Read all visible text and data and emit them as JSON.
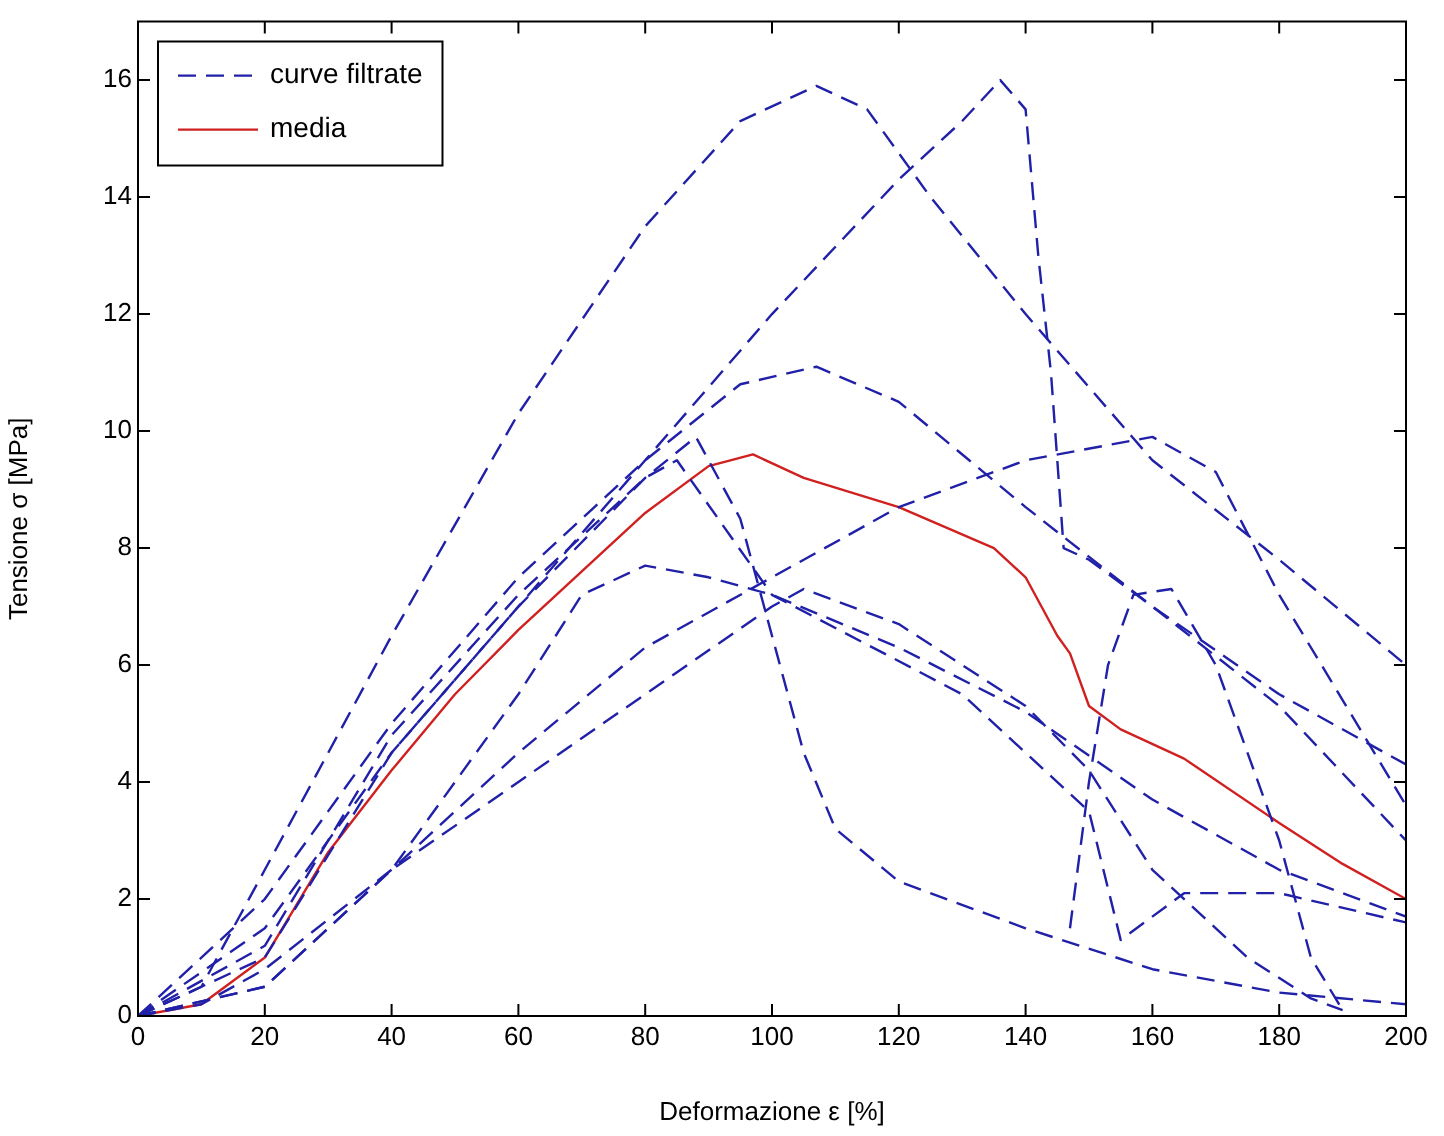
{
  "chart_data": {
    "type": "line",
    "xlabel": "Deformazione ε [%]",
    "ylabel": "Tensione σ [MPa]",
    "xlim": [
      0,
      200
    ],
    "xticks": [
      0,
      20,
      40,
      60,
      80,
      100,
      120,
      140,
      160,
      180,
      200
    ],
    "ylim": [
      0,
      17
    ],
    "yticks": [
      0,
      2,
      4,
      6,
      8,
      10,
      12,
      14,
      16
    ],
    "grid": false,
    "legend": "top left",
    "marker": "none",
    "series": [
      {
        "name": "curve filtrate",
        "color": "#2020a8",
        "line_style": "dashed",
        "x": [
          0,
          10,
          20,
          40,
          60,
          80,
          95,
          107,
          115,
          125,
          140,
          160,
          180,
          200
        ],
        "values": [
          0,
          0.5,
          2.5,
          6.5,
          10.3,
          13.5,
          15.3,
          15.9,
          15.5,
          14,
          12,
          9.5,
          7.8,
          6
        ]
      },
      {
        "color": "#2020a8",
        "line_style": "dashed",
        "x": [
          0,
          20,
          40,
          60,
          80,
          100,
          120,
          130,
          136,
          140,
          142,
          144,
          146,
          150,
          160,
          180,
          200
        ],
        "values": [
          0,
          1,
          4.5,
          7,
          9.5,
          12,
          14.3,
          15.3,
          16,
          15.5,
          13,
          11,
          8,
          7.8,
          7,
          5.5,
          4.3
        ]
      },
      {
        "color": "#2020a8",
        "line_style": "dashed",
        "x": [
          0,
          20,
          40,
          60,
          80,
          95,
          107,
          120,
          140,
          160,
          180,
          200
        ],
        "values": [
          0,
          2,
          5,
          7.5,
          9.5,
          10.8,
          11.1,
          10.5,
          8.7,
          7,
          5.3,
          3
        ]
      },
      {
        "color": "#2020a8",
        "line_style": "dashed",
        "x": [
          0,
          10,
          20,
          40,
          60,
          80,
          100,
          120,
          140,
          160,
          170,
          180,
          190,
          200
        ],
        "values": [
          0,
          0.2,
          0.8,
          2.5,
          4.5,
          6.3,
          7.5,
          8.7,
          9.5,
          9.9,
          9.3,
          7.2,
          5.4,
          3.6
        ]
      },
      {
        "color": "#2020a8",
        "line_style": "dashed",
        "x": [
          0,
          20,
          40,
          60,
          80,
          88,
          95,
          100,
          105,
          110,
          120,
          140,
          160,
          180,
          200
        ],
        "values": [
          0,
          1.5,
          4.5,
          7,
          9.2,
          9.9,
          8.5,
          6.5,
          4.5,
          3.2,
          2.3,
          1.5,
          0.8,
          0.4,
          0.2
        ]
      },
      {
        "color": "#2020a8",
        "line_style": "dashed",
        "x": [
          0,
          20,
          40,
          60,
          70,
          80,
          90,
          100,
          120,
          140,
          160,
          180,
          200
        ],
        "values": [
          0,
          0.5,
          2.5,
          5.5,
          7.2,
          7.7,
          7.5,
          7.2,
          6.3,
          5.2,
          3.7,
          2.5,
          1.7
        ]
      },
      {
        "color": "#2020a8",
        "line_style": "dashed",
        "x": [
          0,
          20,
          40,
          60,
          80,
          100,
          105,
          120,
          140,
          150,
          160,
          175,
          185,
          190
        ],
        "values": [
          0,
          0.5,
          2.5,
          4,
          5.5,
          7,
          7.3,
          6.7,
          5.3,
          4.2,
          2.5,
          1,
          0.3,
          0.1
        ]
      },
      {
        "color": "#2020a8",
        "line_style": "dashed",
        "x": [
          0,
          20,
          40,
          60,
          80,
          85,
          100,
          130,
          150,
          155,
          165,
          180,
          200
        ],
        "values": [
          0,
          1.2,
          4.8,
          7.2,
          9.2,
          9.5,
          7.2,
          5.5,
          3.5,
          1.3,
          2.1,
          2.1,
          1.6
        ]
      },
      {
        "color": "#2020a8",
        "line_style": "dashed",
        "x": [
          147,
          150,
          153,
          157,
          163,
          170,
          180,
          185,
          190
        ],
        "values": [
          1.5,
          4,
          6,
          7.2,
          7.3,
          6,
          3,
          1,
          0.1
        ]
      },
      {
        "name": "media",
        "color": "#d02020",
        "line_style": "solid",
        "x": [
          0,
          10,
          20,
          30,
          40,
          50,
          60,
          70,
          80,
          90,
          97,
          105,
          120,
          135,
          140,
          145,
          147,
          150,
          155,
          165,
          180,
          190,
          200
        ],
        "values": [
          0,
          0.2,
          1,
          2.8,
          4.2,
          5.5,
          6.6,
          7.6,
          8.6,
          9.4,
          9.6,
          9.2,
          8.7,
          8,
          7.5,
          6.5,
          6.2,
          5.3,
          4.9,
          4.4,
          3.3,
          2.6,
          2
        ]
      }
    ]
  }
}
